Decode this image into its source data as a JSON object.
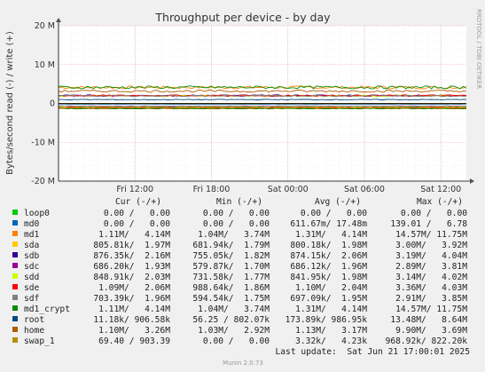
{
  "chart_data": {
    "type": "line",
    "title": "Throughput per device - by day",
    "ylabel": "Bytes/second read (-) / write (+)",
    "ylim": [
      -20000000,
      20000000
    ],
    "yticks": [
      {
        "value": 20000000,
        "label": "20 M"
      },
      {
        "value": 10000000,
        "label": "10 M"
      },
      {
        "value": 0,
        "label": "0"
      },
      {
        "value": -10000000,
        "label": "-10 M"
      },
      {
        "value": -20000000,
        "label": "-20 M"
      }
    ],
    "xlim": [
      0,
      32
    ],
    "xticks": [
      {
        "value": 6,
        "label": "Fri 12:00"
      },
      {
        "value": 12,
        "label": "Fri 18:00"
      },
      {
        "value": 18,
        "label": "Sat 00:00"
      },
      {
        "value": 24,
        "label": "Sat 06:00"
      },
      {
        "value": 30,
        "label": "Sat 12:00"
      }
    ],
    "grid": true,
    "side_label": "RRDTOOL / TOBI OETIKER",
    "columns": [
      "Cur (-/+)",
      "Min (-/+)",
      "Avg (-/+)",
      "Max (-/+)"
    ],
    "series": [
      {
        "name": "loop0",
        "color": "#00cc00",
        "cur": "0.00 /   0.00",
        "min": "0.00 /   0.00",
        "avg": "0.00 /   0.00",
        "max": "0.00 /   0.00",
        "read": 0,
        "write": 0
      },
      {
        "name": "md0",
        "color": "#0066b3",
        "cur": "0.00 /   0.00",
        "min": "0.00 /   0.00",
        "avg": "611.67m/ 17.48m",
        "max": "139.01 /   6.78",
        "read": 0,
        "write": 0
      },
      {
        "name": "md1",
        "color": "#ff8000",
        "cur": "1.11M/   4.14M",
        "min": "1.04M/   3.74M",
        "avg": "1.31M/   4.14M",
        "max": "14.57M/ 11.75M",
        "read": 1310000,
        "write": 4140000
      },
      {
        "name": "sda",
        "color": "#ffcc00",
        "cur": "805.81k/  1.97M",
        "min": "681.94k/  1.79M",
        "avg": "800.18k/  1.98M",
        "max": "3.00M/   3.92M",
        "read": 800180,
        "write": 1980000
      },
      {
        "name": "sdb",
        "color": "#330099",
        "cur": "876.35k/  2.16M",
        "min": "755.05k/  1.82M",
        "avg": "874.15k/  2.06M",
        "max": "3.19M/   4.04M",
        "read": 874150,
        "write": 2060000
      },
      {
        "name": "sdc",
        "color": "#990099",
        "cur": "686.20k/  1.93M",
        "min": "579.87k/  1.70M",
        "avg": "686.12k/  1.96M",
        "max": "2.89M/   3.81M",
        "read": 686120,
        "write": 1960000
      },
      {
        "name": "sdd",
        "color": "#ccff00",
        "cur": "848.91k/  2.03M",
        "min": "731.58k/  1.77M",
        "avg": "841.95k/  1.98M",
        "max": "3.14M/   4.02M",
        "read": 841950,
        "write": 1980000
      },
      {
        "name": "sde",
        "color": "#ff0000",
        "cur": "1.09M/   2.06M",
        "min": "988.64k/  1.86M",
        "avg": "1.10M/   2.04M",
        "max": "3.36M/   4.03M",
        "read": 1100000,
        "write": 2040000
      },
      {
        "name": "sdf",
        "color": "#808080",
        "cur": "703.39k/  1.96M",
        "min": "594.54k/  1.75M",
        "avg": "697.09k/  1.95M",
        "max": "2.91M/   3.85M",
        "read": 697090,
        "write": 1950000
      },
      {
        "name": "md1_crypt",
        "color": "#008f00",
        "cur": "1.11M/   4.14M",
        "min": "1.04M/   3.74M",
        "avg": "1.31M/   4.14M",
        "max": "14.57M/ 11.75M",
        "read": 1310000,
        "write": 4140000
      },
      {
        "name": "root",
        "color": "#00487d",
        "cur": "11.18k/ 906.58k",
        "min": "56.25 / 802.07k",
        "avg": "173.89k/ 986.95k",
        "max": "13.48M/   8.64M",
        "read": 173890,
        "write": 986950
      },
      {
        "name": "home",
        "color": "#b35a00",
        "cur": "1.10M/   3.26M",
        "min": "1.03M/   2.92M",
        "avg": "1.13M/   3.17M",
        "max": "9.90M/   3.69M",
        "read": 1130000,
        "write": 3170000
      },
      {
        "name": "swap_1",
        "color": "#b38f00",
        "cur": "69.40 / 903.39",
        "min": "0.00 /   0.00",
        "avg": "3.32k/   4.23k",
        "max": "968.92k/ 822.20k",
        "read": 3320,
        "write": 4230
      }
    ],
    "last_update": "Last update:  Sat Jun 21 17:00:01 2025",
    "footer": "Munin 2.0.73"
  }
}
